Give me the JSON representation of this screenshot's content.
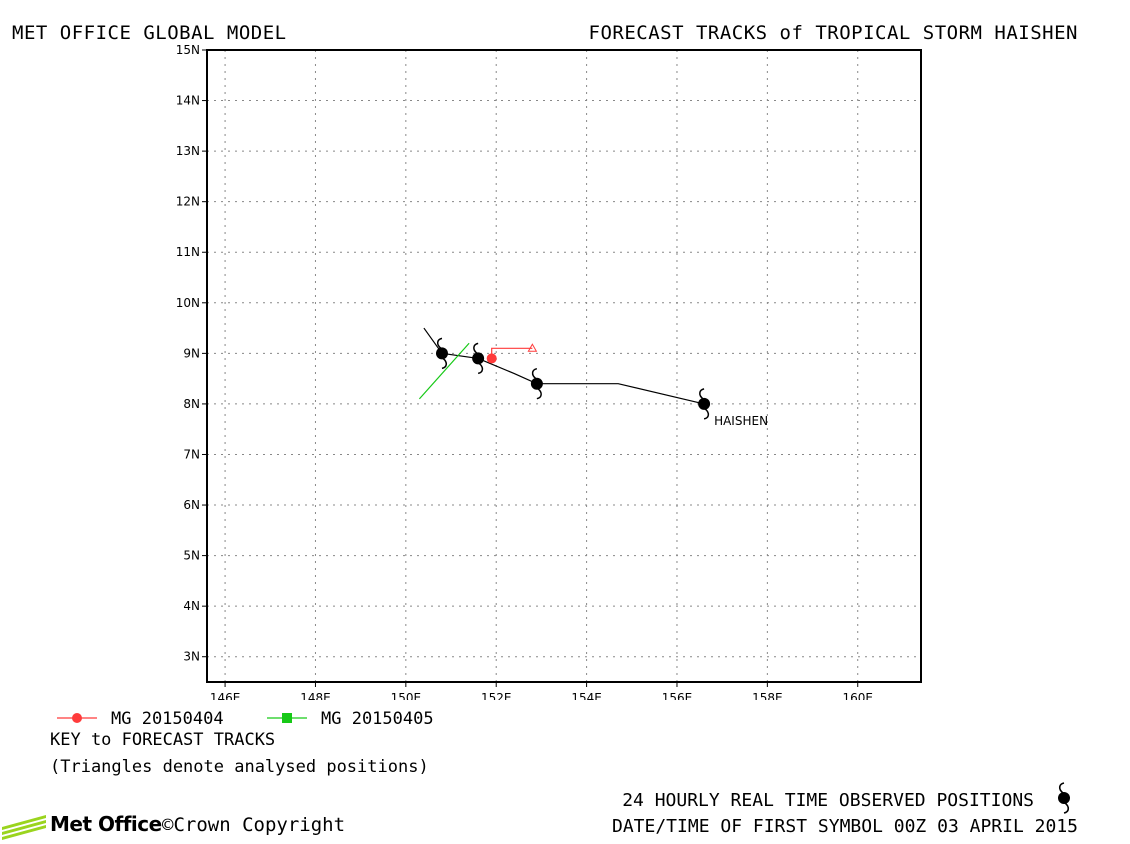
{
  "header": {
    "left_title": "MET OFFICE GLOBAL MODEL",
    "right_title": "FORECAST TRACKS of TROPICAL STORM HAISHEN"
  },
  "map": {
    "lon_ticks": [
      "146E",
      "148E",
      "150E",
      "152E",
      "154E",
      "156E",
      "158E",
      "160E"
    ],
    "lat_ticks": [
      "15N",
      "14N",
      "13N",
      "12N",
      "11N",
      "10N",
      "9N",
      "8N",
      "7N",
      "6N",
      "5N",
      "4N",
      "3N"
    ],
    "lon_range": [
      145.6,
      161.4
    ],
    "lat_range": [
      2.5,
      15.0
    ],
    "storm_label": "HAISHEN",
    "observed_track": [
      [
        156.6,
        8.0
      ],
      [
        154.7,
        8.4
      ],
      [
        152.9,
        8.4
      ],
      [
        152.4,
        8.6
      ],
      [
        151.6,
        8.9
      ],
      [
        150.8,
        9.0
      ],
      [
        150.4,
        9.5
      ]
    ],
    "observed_symbols": [
      [
        156.6,
        8.0
      ],
      [
        152.9,
        8.4
      ],
      [
        151.6,
        8.9
      ],
      [
        150.8,
        9.0
      ]
    ],
    "forecast_mg_20150404": {
      "color": "#ff3b3b",
      "track": [
        [
          151.9,
          8.9
        ],
        [
          151.9,
          9.1
        ],
        [
          152.8,
          9.1
        ]
      ],
      "start_point": [
        151.9,
        8.9
      ],
      "triangle": [
        152.8,
        9.1
      ]
    },
    "forecast_mg_20150405": {
      "color": "#17c917",
      "track": [
        [
          150.3,
          8.1
        ],
        [
          151.4,
          9.2
        ]
      ]
    },
    "colors": {
      "grid": "#888888",
      "frame": "#000000"
    }
  },
  "legend": {
    "items": [
      {
        "label": "MG 20150404",
        "color": "#ff3b3b",
        "marker": "circle"
      },
      {
        "label": "MG 20150405",
        "color": "#17c917",
        "marker": "square"
      }
    ],
    "key_title": "KEY to FORECAST TRACKS",
    "key_note": "(Triangles denote analysed positions)"
  },
  "footer": {
    "brand": "Met Office",
    "copyright": "©Crown Copyright",
    "observed_caption": "24 HOURLY REAL TIME OBSERVED POSITIONS",
    "datetime_caption": "DATE/TIME OF FIRST SYMBOL 00Z 03 APRIL 2015"
  }
}
